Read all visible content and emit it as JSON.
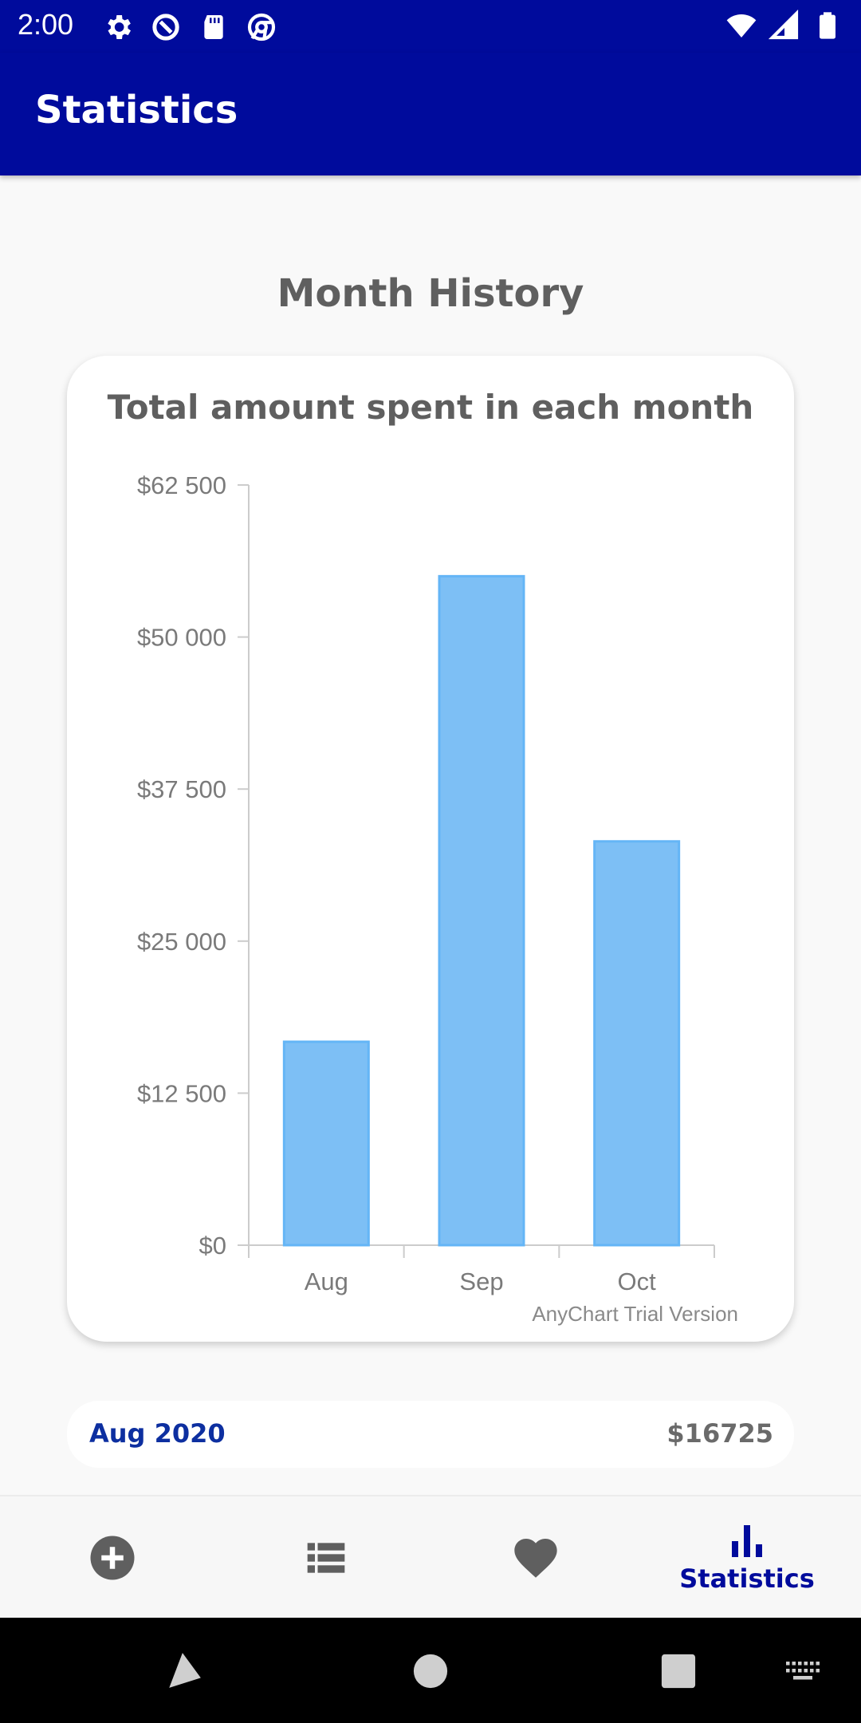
{
  "status_bar": {
    "time": "2:00",
    "left_icons": [
      "gear-icon",
      "sync-icon",
      "sd-card-icon",
      "chrome-icon"
    ],
    "right_icons": [
      "wifi-icon",
      "signal-icon",
      "battery-icon"
    ]
  },
  "app_bar": {
    "title": "Statistics"
  },
  "section": {
    "title": "Month History"
  },
  "chart_data": {
    "type": "bar",
    "title": "Total amount spent in each month",
    "categories": [
      "Aug",
      "Sep",
      "Oct"
    ],
    "values": [
      16725,
      55000,
      33200
    ],
    "ylim": [
      0,
      62500
    ],
    "yticks": [
      "$0",
      "$12 500",
      "$25 000",
      "$37 500",
      "$50 000",
      "$62 500"
    ],
    "bar_color": "#7dbff5",
    "bar_stroke": "#64b5f6",
    "watermark": "AnyChart Trial Version"
  },
  "month_summary": {
    "label": "Aug 2020",
    "amount": "$16725"
  },
  "bottom_nav": {
    "items": [
      {
        "icon": "add-circle-icon",
        "label": ""
      },
      {
        "icon": "list-icon",
        "label": ""
      },
      {
        "icon": "heart-icon",
        "label": ""
      },
      {
        "icon": "bar-chart-icon",
        "label": "Statistics"
      }
    ],
    "active_color": "#000b9c",
    "inactive_color": "#5f5f5f"
  },
  "system_nav": {
    "icons": [
      "back-icon",
      "home-icon",
      "recents-icon",
      "keyboard-icon"
    ]
  }
}
